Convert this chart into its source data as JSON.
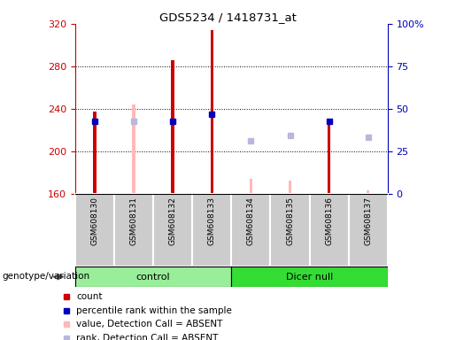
{
  "title": "GDS5234 / 1418731_at",
  "samples": [
    "GSM608130",
    "GSM608131",
    "GSM608132",
    "GSM608133",
    "GSM608134",
    "GSM608135",
    "GSM608136",
    "GSM608137"
  ],
  "ylim": [
    160,
    320
  ],
  "yticks_left": [
    160,
    200,
    240,
    280,
    320
  ],
  "yticks_right": [
    0,
    25,
    50,
    75,
    100
  ],
  "right_tick_labels": [
    "0",
    "25",
    "50",
    "75",
    "100%"
  ],
  "count_color": "#cc0000",
  "rank_color": "#0000bb",
  "absent_value_color": "#ffb8b8",
  "absent_rank_color": "#b8b8dd",
  "control_bg": "#99ee99",
  "dicer_bg": "#33dd33",
  "sample_box_bg": "#cccccc",
  "group_label": "genotype/variation",
  "count_values": [
    237,
    null,
    286,
    314,
    null,
    null,
    229,
    null
  ],
  "rank_values": [
    228,
    null,
    228,
    235,
    null,
    null,
    228,
    null
  ],
  "absent_value_values": [
    null,
    244,
    null,
    null,
    174,
    172,
    null,
    163
  ],
  "absent_rank_values": [
    null,
    228,
    null,
    null,
    210,
    215,
    null,
    213
  ],
  "bar_width": 0.08,
  "legend_items": [
    {
      "color": "#cc0000",
      "label": "count"
    },
    {
      "color": "#0000bb",
      "label": "percentile rank within the sample"
    },
    {
      "color": "#ffb8b8",
      "label": "value, Detection Call = ABSENT"
    },
    {
      "color": "#b8b8dd",
      "label": "rank, Detection Call = ABSENT"
    }
  ]
}
